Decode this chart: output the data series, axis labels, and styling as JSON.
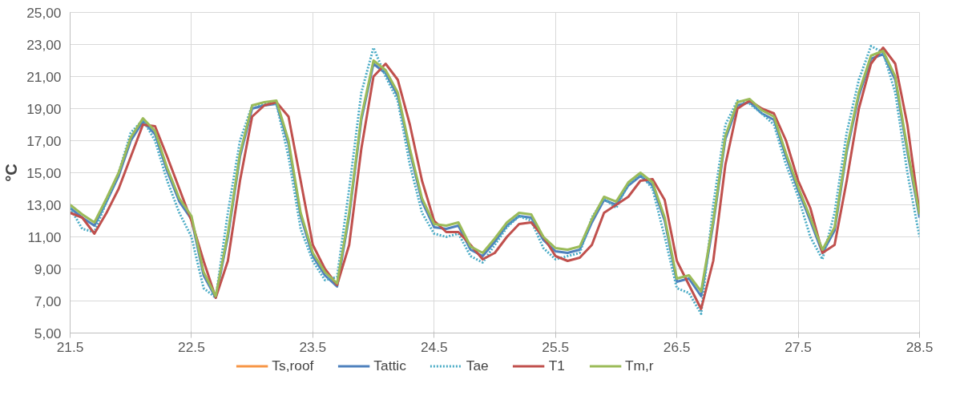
{
  "chart_data": {
    "type": "line",
    "ylabel": "°C",
    "x": [
      21.5,
      21.6,
      21.7,
      21.8,
      21.9,
      22.0,
      22.1,
      22.2,
      22.3,
      22.4,
      22.5,
      22.6,
      22.7,
      22.8,
      22.9,
      23.0,
      23.1,
      23.2,
      23.3,
      23.4,
      23.5,
      23.6,
      23.7,
      23.8,
      23.9,
      24.0,
      24.1,
      24.2,
      24.3,
      24.4,
      24.5,
      24.6,
      24.7,
      24.8,
      24.9,
      25.0,
      25.1,
      25.2,
      25.3,
      25.4,
      25.5,
      25.6,
      25.7,
      25.8,
      25.9,
      26.0,
      26.1,
      26.2,
      26.3,
      26.4,
      26.5,
      26.6,
      26.7,
      26.8,
      26.9,
      27.0,
      27.1,
      27.2,
      27.3,
      27.4,
      27.5,
      27.6,
      27.7,
      27.8,
      27.9,
      28.0,
      28.1,
      28.2,
      28.3,
      28.4,
      28.5
    ],
    "series": [
      {
        "name": "Ts,roof",
        "color": "#f79646",
        "line_style": "solid",
        "values": [
          null,
          null,
          null,
          null,
          null,
          null,
          null,
          null,
          null,
          null,
          null,
          null,
          null,
          null,
          null,
          null,
          null,
          null,
          null,
          null,
          null,
          null,
          null,
          null,
          null,
          null,
          null,
          null,
          null,
          null,
          null,
          null,
          null,
          null,
          null,
          null,
          null,
          null,
          null,
          null,
          null,
          null,
          null,
          null,
          null,
          null,
          null,
          null,
          null,
          null,
          null,
          null,
          null,
          null,
          null,
          null,
          null,
          null,
          null,
          null,
          null,
          null,
          null,
          null,
          null,
          null,
          null,
          null,
          null,
          null,
          null
        ]
      },
      {
        "name": "Tattic",
        "color": "#4f81bd",
        "line_style": "solid",
        "values": [
          12.8,
          12.2,
          11.7,
          13.2,
          14.8,
          17.0,
          18.2,
          17.4,
          15.1,
          13.2,
          12.1,
          8.6,
          7.2,
          11.0,
          16.0,
          19.0,
          19.2,
          19.3,
          16.8,
          12.3,
          9.8,
          8.6,
          7.9,
          12.3,
          18.3,
          21.8,
          21.2,
          19.8,
          16.3,
          13.2,
          11.6,
          11.5,
          11.7,
          10.2,
          9.8,
          10.7,
          11.7,
          12.3,
          12.2,
          10.8,
          10.1,
          10.0,
          10.2,
          11.9,
          13.3,
          13.0,
          14.2,
          14.8,
          14.2,
          12.0,
          8.2,
          8.4,
          7.3,
          11.8,
          17.1,
          19.2,
          19.4,
          18.7,
          18.3,
          16.0,
          13.9,
          12.0,
          10.0,
          11.4,
          16.3,
          19.8,
          22.1,
          22.4,
          20.8,
          16.3,
          12.2
        ]
      },
      {
        "name": "Tae",
        "color": "#4bacc6",
        "line_style": "dotted",
        "values": [
          12.8,
          11.5,
          11.3,
          13.2,
          15.0,
          17.5,
          18.3,
          17.0,
          14.5,
          12.5,
          11.0,
          7.8,
          7.2,
          12.5,
          17.0,
          19.2,
          19.3,
          19.3,
          16.0,
          11.5,
          9.5,
          8.3,
          8.5,
          14.0,
          20.0,
          22.8,
          21.0,
          19.5,
          15.5,
          12.5,
          11.2,
          11.0,
          11.2,
          9.8,
          9.4,
          10.5,
          11.6,
          12.3,
          12.0,
          10.3,
          9.6,
          9.8,
          10.0,
          12.2,
          13.4,
          12.8,
          14.3,
          14.9,
          14.0,
          11.0,
          7.8,
          7.5,
          6.2,
          13.0,
          18.0,
          19.5,
          19.3,
          18.7,
          18.0,
          15.5,
          13.5,
          11.0,
          9.6,
          12.5,
          17.5,
          20.8,
          22.9,
          22.5,
          20.0,
          15.0,
          11.0
        ]
      },
      {
        "name": "T1",
        "color": "#c0504d",
        "line_style": "solid",
        "values": [
          12.5,
          12.2,
          11.2,
          12.5,
          14.0,
          16.0,
          18.0,
          17.9,
          16.0,
          14.0,
          12.0,
          9.5,
          7.2,
          9.5,
          14.5,
          18.5,
          19.2,
          19.4,
          18.5,
          14.5,
          10.5,
          9.0,
          8.0,
          10.5,
          16.5,
          21.0,
          21.8,
          20.8,
          18.0,
          14.5,
          12.0,
          11.3,
          11.3,
          10.5,
          9.6,
          10.0,
          11.0,
          11.8,
          11.9,
          11.0,
          9.8,
          9.5,
          9.7,
          10.5,
          12.5,
          13.0,
          13.5,
          14.5,
          14.6,
          13.3,
          9.5,
          8.0,
          6.5,
          9.5,
          15.5,
          19.0,
          19.5,
          19.0,
          18.7,
          17.0,
          14.5,
          12.8,
          10.0,
          10.5,
          14.5,
          19.0,
          21.8,
          22.8,
          21.8,
          18.0,
          12.5
        ]
      },
      {
        "name": "Tm,r",
        "color": "#9bbb59",
        "line_style": "solid",
        "values": [
          13.0,
          12.4,
          11.9,
          13.4,
          15.0,
          17.2,
          18.4,
          17.6,
          15.3,
          13.4,
          12.3,
          8.8,
          7.3,
          11.2,
          16.2,
          19.2,
          19.4,
          19.5,
          17.0,
          12.5,
          10.0,
          8.8,
          8.1,
          12.5,
          18.5,
          22.0,
          21.4,
          20.0,
          16.5,
          13.4,
          11.8,
          11.7,
          11.9,
          10.4,
          10.0,
          10.9,
          11.9,
          12.5,
          12.4,
          11.0,
          10.3,
          10.2,
          10.4,
          12.1,
          13.5,
          13.2,
          14.4,
          15.0,
          14.4,
          12.2,
          8.4,
          8.6,
          7.6,
          12.0,
          17.3,
          19.4,
          19.6,
          18.9,
          18.5,
          16.2,
          14.1,
          12.2,
          10.2,
          11.6,
          16.5,
          20.0,
          22.3,
          22.6,
          21.0,
          16.5,
          12.4
        ]
      }
    ],
    "xlim": [
      21.5,
      28.5
    ],
    "xticks": [
      21.5,
      22.5,
      23.5,
      24.5,
      25.5,
      26.5,
      27.5,
      28.5
    ],
    "ylim": [
      5,
      25
    ],
    "yticks": [
      {
        "value": 5,
        "label": "5,00"
      },
      {
        "value": 7,
        "label": "7,00"
      },
      {
        "value": 9,
        "label": "9,00"
      },
      {
        "value": 11,
        "label": "11,00"
      },
      {
        "value": 13,
        "label": "13,00"
      },
      {
        "value": 15,
        "label": "15,00"
      },
      {
        "value": 17,
        "label": "17,00"
      },
      {
        "value": 19,
        "label": "19,00"
      },
      {
        "value": 21,
        "label": "21,00"
      },
      {
        "value": 23,
        "label": "23,00"
      },
      {
        "value": 25,
        "label": "25,00"
      }
    ],
    "grid": true,
    "legend": "bottom"
  }
}
